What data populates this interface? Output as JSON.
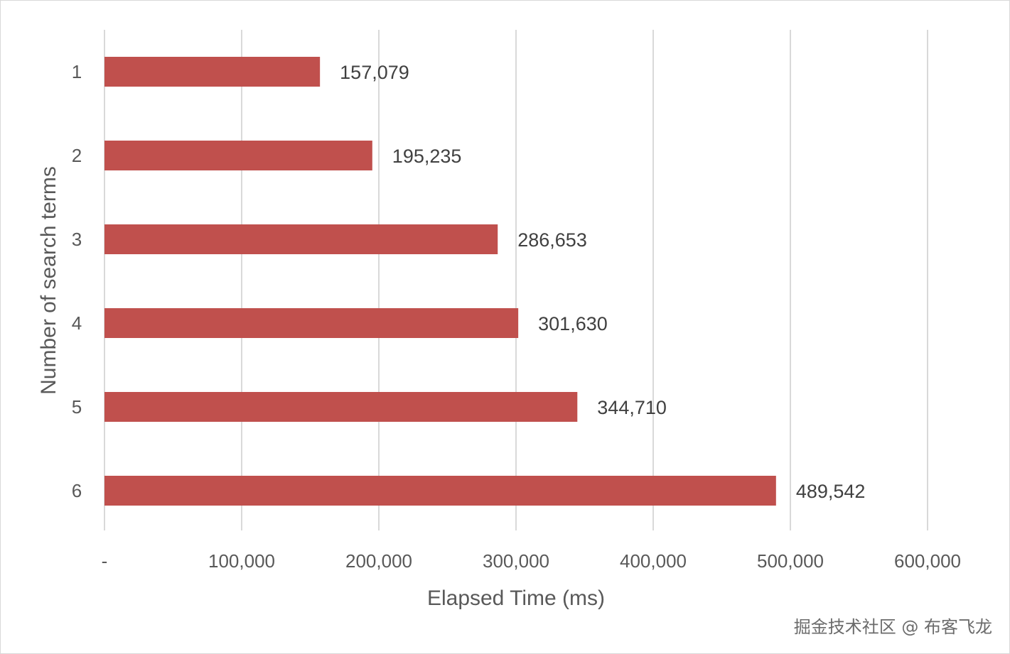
{
  "chart_data": {
    "type": "bar",
    "orientation": "horizontal",
    "categories": [
      "1",
      "2",
      "3",
      "4",
      "5",
      "6"
    ],
    "values": [
      157079,
      195235,
      286653,
      301630,
      344710,
      489542
    ],
    "value_labels": [
      "157,079",
      "195,235",
      "286,653",
      "301,630",
      "344,710",
      "489,542"
    ],
    "x_ticks": [
      0,
      100000,
      200000,
      300000,
      400000,
      500000,
      600000
    ],
    "x_tick_labels": [
      "-",
      "100,000",
      "200,000",
      "300,000",
      "400,000",
      "500,000",
      "600,000"
    ],
    "xlabel": "Elapsed Time (ms)",
    "ylabel": "Number of search terms",
    "xlim": [
      0,
      600000
    ],
    "grid": "vertical",
    "legend": "none",
    "bar_color": "#c0504d",
    "gridline_color": "#d9d9d9"
  },
  "watermark": "掘金技术社区 @ 布客飞龙"
}
